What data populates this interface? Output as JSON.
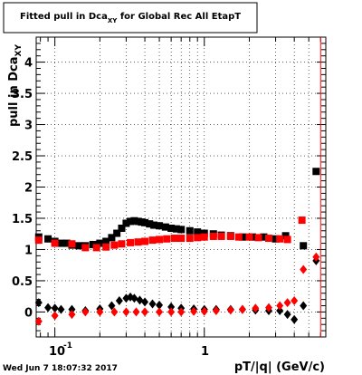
{
  "chart_data": {
    "type": "scatter",
    "title_main": "Fitted pull in Dca",
    "title_sub": "XY",
    "title_rest": " for Global Rec All EtapT",
    "xlabel": "pT/|q| (GeV/c)",
    "ylabel_main": "pull in Dca",
    "ylabel_sub": "XY",
    "xscale": "log",
    "xlim": [
      0.075,
      6.5
    ],
    "ylim": [
      -0.4,
      4.4
    ],
    "grid": true,
    "legend": "none",
    "yticks": [
      "0",
      "0.5",
      "1",
      "1.5",
      "2",
      "2.5",
      "3",
      "3.5",
      "4"
    ],
    "xtick_labels": [
      "10",
      "-1",
      "1"
    ],
    "vline_x": 6.0,
    "series": [
      {
        "marker": "square",
        "color": "#000000",
        "x": [
          0.078,
          0.09,
          0.1,
          0.11,
          0.12,
          0.13,
          0.145,
          0.16,
          0.18,
          0.2,
          0.22,
          0.24,
          0.26,
          0.28,
          0.3,
          0.32,
          0.34,
          0.36,
          0.38,
          0.4,
          0.43,
          0.46,
          0.5,
          0.55,
          0.6,
          0.65,
          0.7,
          0.8,
          0.9,
          1.0,
          1.15,
          1.3,
          1.5,
          1.8,
          2.1,
          2.5,
          3.0,
          3.5,
          4.6,
          5.6
        ],
        "y": [
          1.2,
          1.17,
          1.13,
          1.1,
          1.1,
          1.07,
          1.06,
          1.06,
          1.08,
          1.1,
          1.13,
          1.19,
          1.26,
          1.34,
          1.42,
          1.45,
          1.46,
          1.45,
          1.44,
          1.43,
          1.41,
          1.39,
          1.38,
          1.36,
          1.34,
          1.33,
          1.32,
          1.3,
          1.28,
          1.26,
          1.25,
          1.23,
          1.22,
          1.2,
          1.2,
          1.2,
          1.17,
          1.22,
          1.06,
          2.25
        ]
      },
      {
        "marker": "square",
        "color": "#ff0000",
        "x": [
          0.078,
          0.1,
          0.13,
          0.16,
          0.19,
          0.22,
          0.25,
          0.28,
          0.32,
          0.36,
          0.4,
          0.45,
          0.5,
          0.56,
          0.63,
          0.7,
          0.8,
          0.9,
          1.0,
          1.15,
          1.3,
          1.5,
          1.7,
          2.0,
          2.3,
          2.7,
          3.2,
          3.6,
          4.5
        ],
        "y": [
          1.15,
          1.1,
          1.09,
          1.03,
          1.03,
          1.04,
          1.07,
          1.09,
          1.11,
          1.12,
          1.13,
          1.15,
          1.16,
          1.17,
          1.18,
          1.18,
          1.18,
          1.19,
          1.2,
          1.21,
          1.21,
          1.21,
          1.2,
          1.2,
          1.19,
          1.18,
          1.17,
          1.16,
          1.47
        ]
      },
      {
        "marker": "diamond",
        "color": "#000000",
        "x": [
          0.078,
          0.09,
          0.1,
          0.11,
          0.13,
          0.16,
          0.2,
          0.24,
          0.27,
          0.3,
          0.32,
          0.34,
          0.37,
          0.4,
          0.45,
          0.5,
          0.6,
          0.7,
          0.85,
          1.0,
          1.2,
          1.5,
          1.8,
          2.2,
          2.7,
          3.2,
          3.6,
          4.0,
          4.6,
          5.6
        ],
        "y": [
          0.15,
          0.07,
          0.06,
          0.04,
          0.04,
          0.02,
          0.05,
          0.1,
          0.18,
          0.22,
          0.24,
          0.22,
          0.19,
          0.16,
          0.13,
          0.11,
          0.08,
          0.06,
          0.05,
          0.04,
          0.04,
          0.04,
          0.04,
          0.03,
          0.02,
          0.02,
          -0.04,
          -0.12,
          0.1,
          0.82
        ]
      },
      {
        "marker": "diamond",
        "color": "#ff0000",
        "x": [
          0.078,
          0.1,
          0.13,
          0.16,
          0.2,
          0.25,
          0.3,
          0.35,
          0.4,
          0.5,
          0.6,
          0.7,
          0.85,
          1.0,
          1.2,
          1.5,
          1.8,
          2.2,
          2.7,
          3.2,
          3.6,
          4.0,
          4.6,
          5.6
        ],
        "y": [
          -0.15,
          -0.06,
          -0.04,
          0.0,
          0.0,
          0.0,
          0.0,
          0.0,
          0.0,
          0.0,
          0.0,
          0.0,
          0.01,
          0.01,
          0.02,
          0.03,
          0.04,
          0.06,
          0.07,
          0.1,
          0.15,
          0.18,
          0.68,
          0.88
        ]
      }
    ]
  },
  "footer": {
    "timestamp": "Wed Jun  7 18:07:32 2017"
  }
}
